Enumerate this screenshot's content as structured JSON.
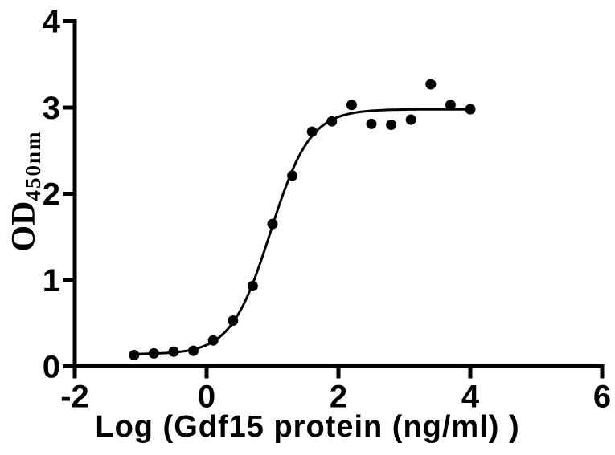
{
  "figure": {
    "background_color": "#ffffff",
    "foreground_color": "#000000"
  },
  "chart_data": {
    "type": "scatter",
    "title": "",
    "xlabel": "Log (Gdf15 protein (ng/ml) )",
    "ylabel": "OD",
    "ylabel_subscript": "450nm",
    "x": [
      -1.1,
      -0.8,
      -0.5,
      -0.2,
      0.1,
      0.4,
      0.7,
      1.0,
      1.3,
      1.6,
      1.9,
      2.2,
      2.5,
      2.8,
      3.1,
      3.4,
      3.7,
      4.0
    ],
    "y": [
      0.13,
      0.15,
      0.17,
      0.18,
      0.3,
      0.53,
      0.93,
      1.65,
      2.21,
      2.72,
      2.84,
      3.03,
      2.81,
      2.8,
      2.86,
      3.27,
      3.03,
      2.98
    ],
    "xlim": [
      -2,
      6
    ],
    "ylim": [
      0,
      4
    ],
    "x_ticks": [
      -2,
      0,
      2,
      4,
      6
    ],
    "y_ticks": [
      0,
      1,
      2,
      3,
      4
    ],
    "grid": false,
    "legend": null,
    "marker_color": "#000000",
    "line_color": "#000000",
    "fit_curve": {
      "model": "4PL sigmoid",
      "bottom": 0.14,
      "top": 2.98,
      "logEC50": 0.97,
      "hillslope": 1.45,
      "x_start": -1.1,
      "x_end": 4.0
    }
  }
}
